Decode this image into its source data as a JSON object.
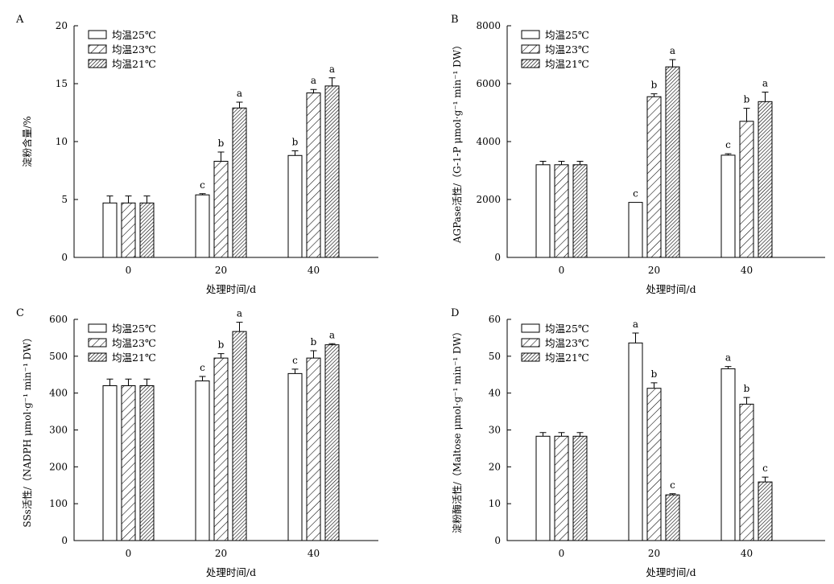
{
  "chart_data": [
    {
      "panel": "A",
      "type": "bar",
      "categories": [
        "0",
        "20",
        "40"
      ],
      "xlabel": "处理时间/d",
      "ylabel": "淀粉含量/%",
      "ylim": [
        0,
        20
      ],
      "yticks": [
        "0",
        "5",
        "10",
        "15",
        "20"
      ],
      "series": [
        {
          "name": "均温25℃",
          "values": [
            4.7,
            5.4,
            8.8
          ],
          "errors": [
            0.6,
            0.1,
            0.4
          ],
          "letters": [
            "",
            "c",
            "b"
          ]
        },
        {
          "name": "均温23℃",
          "values": [
            4.7,
            8.3,
            14.2
          ],
          "errors": [
            0.6,
            0.8,
            0.3
          ],
          "letters": [
            "",
            "b",
            "a"
          ]
        },
        {
          "name": "均温21℃",
          "values": [
            4.7,
            12.9,
            14.8
          ],
          "errors": [
            0.6,
            0.5,
            0.7
          ],
          "letters": [
            "",
            "a",
            "a"
          ]
        }
      ],
      "legend": "top-left"
    },
    {
      "panel": "B",
      "type": "bar",
      "categories": [
        "0",
        "20",
        "40"
      ],
      "xlabel": "处理时间/d",
      "ylabel": "AGPase活性/（G-1-P μmol·g⁻¹ min⁻¹ DW）",
      "ylim": [
        0,
        8000
      ],
      "yticks": [
        "0",
        "2000",
        "4000",
        "6000",
        "8000"
      ],
      "series": [
        {
          "name": "均温25℃",
          "values": [
            3200,
            1900,
            3530
          ],
          "errors": [
            120,
            0,
            50
          ],
          "letters": [
            "",
            "c",
            "c"
          ]
        },
        {
          "name": "均温23℃",
          "values": [
            3200,
            5550,
            4700
          ],
          "errors": [
            120,
            100,
            450
          ],
          "letters": [
            "",
            "b",
            "b"
          ]
        },
        {
          "name": "均温21℃",
          "values": [
            3200,
            6580,
            5380
          ],
          "errors": [
            120,
            250,
            330
          ],
          "letters": [
            "",
            "a",
            "a"
          ]
        }
      ],
      "legend": "top-left"
    },
    {
      "panel": "C",
      "type": "bar",
      "categories": [
        "0",
        "20",
        "40"
      ],
      "xlabel": "处理时间/d",
      "ylabel": "SSs活性/（NADPH μmol·g⁻¹ min⁻¹ DW）",
      "ylim": [
        0,
        600
      ],
      "yticks": [
        "0",
        "100",
        "200",
        "300",
        "400",
        "500",
        "600"
      ],
      "series": [
        {
          "name": "均温25℃",
          "values": [
            420,
            433,
            453
          ],
          "errors": [
            18,
            12,
            12
          ],
          "letters": [
            "",
            "c",
            "c"
          ]
        },
        {
          "name": "均温23℃",
          "values": [
            420,
            495,
            495
          ],
          "errors": [
            18,
            12,
            20
          ],
          "letters": [
            "",
            "b",
            "b"
          ]
        },
        {
          "name": "均温21℃",
          "values": [
            420,
            567,
            531
          ],
          "errors": [
            18,
            25,
            3
          ],
          "letters": [
            "",
            "a",
            "a"
          ]
        }
      ],
      "legend": "top-left"
    },
    {
      "panel": "D",
      "type": "bar",
      "categories": [
        "0",
        "20",
        "40"
      ],
      "xlabel": "处理时间/d",
      "ylabel": "淀粉酶活性/（Maltose μmol·g⁻¹ min⁻¹ DW）",
      "ylim": [
        0,
        60
      ],
      "yticks": [
        "0",
        "10",
        "20",
        "30",
        "40",
        "50",
        "60"
      ],
      "series": [
        {
          "name": "均温25℃",
          "values": [
            28.3,
            53.6,
            46.6
          ],
          "errors": [
            1.0,
            2.7,
            0.6
          ],
          "letters": [
            "",
            "a",
            "a"
          ]
        },
        {
          "name": "均温23℃",
          "values": [
            28.3,
            41.3,
            37.0
          ],
          "errors": [
            1.0,
            1.5,
            1.8
          ],
          "letters": [
            "",
            "b",
            "b"
          ]
        },
        {
          "name": "均温21℃",
          "values": [
            28.3,
            12.4,
            15.9
          ],
          "errors": [
            1.0,
            0.3,
            1.3
          ],
          "letters": [
            "",
            "c",
            "c"
          ]
        }
      ],
      "legend": "top-left"
    }
  ]
}
